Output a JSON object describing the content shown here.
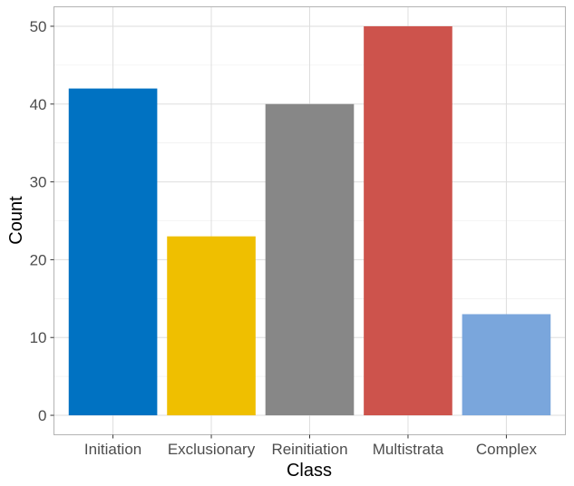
{
  "chart_data": {
    "type": "bar",
    "title": "",
    "xlabel": "Class",
    "ylabel": "Count",
    "categories": [
      "Initiation",
      "Exclusionary",
      "Reinitiation",
      "Multistrata",
      "Complex"
    ],
    "values": [
      42,
      23,
      40,
      50,
      13
    ],
    "colors": [
      "#0072c2",
      "#efbf00",
      "#878787",
      "#cd534c",
      "#7aa6dc"
    ],
    "ylim": [
      -2.5,
      52.5
    ],
    "yticks": [
      0,
      10,
      20,
      30,
      40,
      50
    ],
    "grid": true,
    "legend": "none"
  }
}
